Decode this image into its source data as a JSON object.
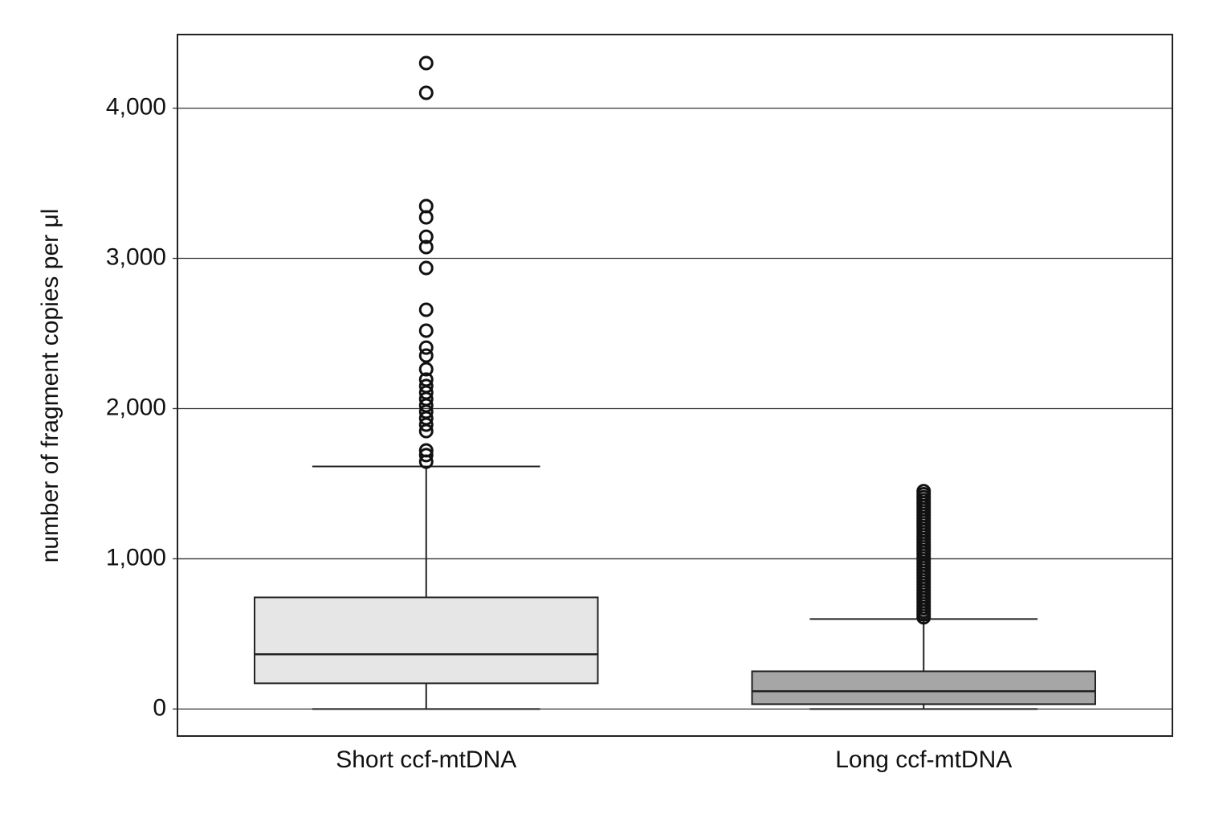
{
  "chart_data": {
    "type": "box",
    "y_label": "number of fragment copies per μl",
    "categories": [
      "Short ccf-mtDNA",
      "Long ccf-mtDNA"
    ],
    "ylim": [
      -180,
      4490
    ],
    "yticks": [
      0,
      {
        "value": 1000,
        "label": "1,000"
      },
      {
        "value": 2000,
        "label": "2,000"
      },
      {
        "value": 3000,
        "label": "3,000"
      },
      {
        "value": 4000,
        "label": "4,000"
      }
    ],
    "grid": true,
    "boxes": [
      {
        "color": "#e6e6e6",
        "whisker_low": 0,
        "q1": 171,
        "median": 364,
        "q3": 743,
        "whisker_high": 1615,
        "outliers": [
          4300,
          4102,
          3348,
          3273,
          3144,
          3075,
          2936,
          2658,
          2519,
          2406,
          2353,
          2262,
          2193,
          2150,
          2107,
          2064,
          2021,
          1979,
          1936,
          1893,
          1850,
          1722,
          1690,
          1647
        ]
      },
      {
        "color": "#a6a6a6",
        "whisker_low": 0,
        "q1": 32,
        "median": 118,
        "q3": 251,
        "whisker_high": 599,
        "outliers": [
          610,
          630,
          650,
          670,
          690,
          710,
          730,
          750,
          770,
          790,
          810,
          830,
          850,
          870,
          890,
          910,
          930,
          950,
          970,
          990,
          1010,
          1030,
          1050,
          1070,
          1090,
          1110,
          1130,
          1150,
          1170,
          1190,
          1210,
          1230,
          1250,
          1270,
          1290,
          1310,
          1330,
          1350,
          1370,
          1390,
          1410,
          1430,
          1450
        ]
      }
    ]
  }
}
